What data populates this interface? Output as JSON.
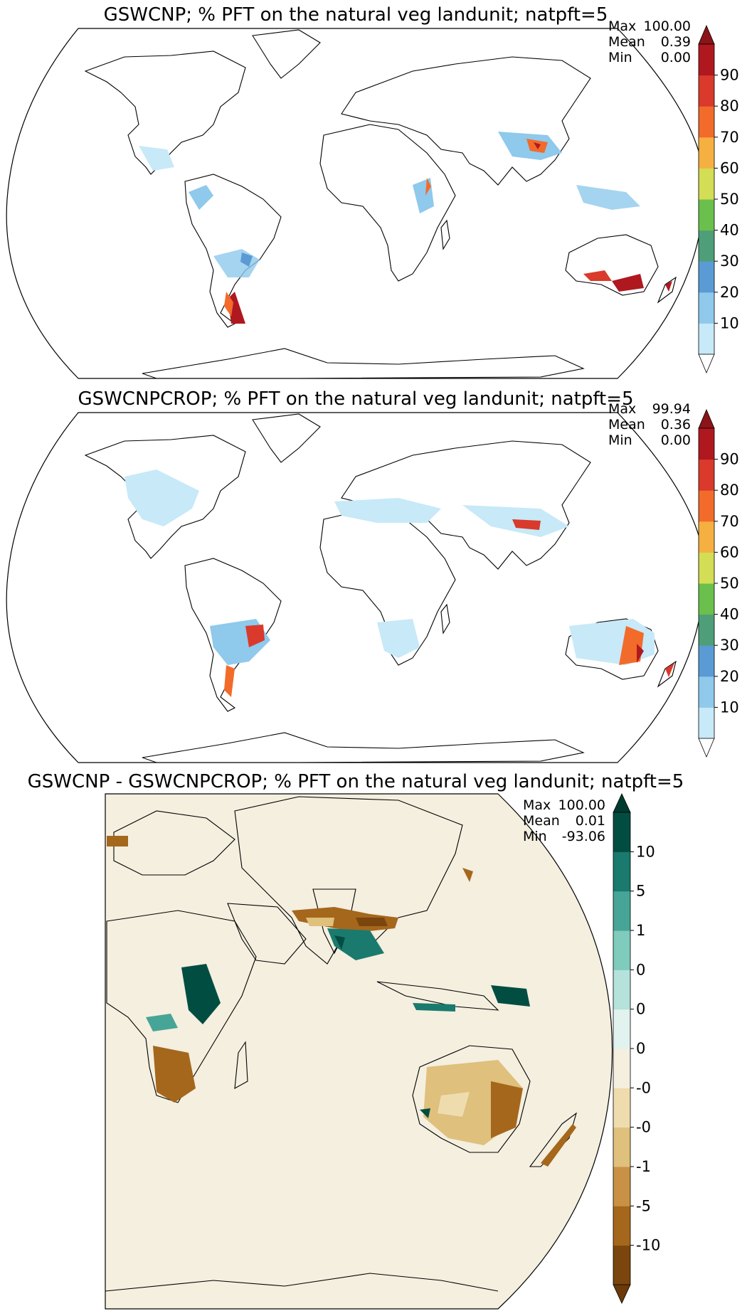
{
  "panels": [
    {
      "title": "GSWCNP; % PFT on the natural veg landunit; natpft=5",
      "stats": {
        "max_label": "Max",
        "max": "100.00",
        "mean_label": "Mean",
        "mean": "0.39",
        "min_label": "Min",
        "min": "0.00"
      },
      "colorbar": {
        "ticks": [
          "90",
          "80",
          "70",
          "60",
          "50",
          "40",
          "30",
          "20",
          "10"
        ],
        "colors": [
          "#c7e9f8",
          "#8fc9ec",
          "#5a9bd5",
          "#4e9e7a",
          "#6bbf4c",
          "#d3dd55",
          "#f5b041",
          "#f26b2a",
          "#d93a2b",
          "#b0181f"
        ],
        "extend_low": "#ffffff",
        "extend_high": "#8b1418"
      }
    },
    {
      "title": "GSWCNPCROP; % PFT on the natural veg landunit; natpft=5",
      "stats": {
        "max_label": "Max",
        "max": "99.94",
        "mean_label": "Mean",
        "mean": "0.36",
        "min_label": "Min",
        "min": "0.00"
      },
      "colorbar": {
        "ticks": [
          "90",
          "80",
          "70",
          "60",
          "50",
          "40",
          "30",
          "20",
          "10"
        ],
        "colors": [
          "#c7e9f8",
          "#8fc9ec",
          "#5a9bd5",
          "#4e9e7a",
          "#6bbf4c",
          "#d3dd55",
          "#f5b041",
          "#f26b2a",
          "#d93a2b",
          "#b0181f"
        ],
        "extend_low": "#ffffff",
        "extend_high": "#8b1418"
      }
    },
    {
      "title": "GSWCNP - GSWCNPCROP; % PFT on the natural veg landunit; natpft=5",
      "stats": {
        "max_label": "Max",
        "max": "100.00",
        "mean_label": "Mean",
        "mean": "0.01",
        "min_label": "Min",
        "min": "-93.06"
      },
      "colorbar": {
        "ticks": [
          "10",
          "5",
          "1",
          "0",
          "0",
          "0",
          "-0",
          "-0",
          "-1",
          "-5",
          "-10"
        ],
        "colors": [
          "#7a460d",
          "#a5671c",
          "#c89146",
          "#dfc07c",
          "#efdcae",
          "#f4efdf",
          "#e2f2ee",
          "#b5e2da",
          "#7fcbbc",
          "#46a596",
          "#1a7a6e",
          "#024d42"
        ],
        "extend_low": "#6b3a08",
        "extend_high": "#003b30"
      }
    }
  ]
}
